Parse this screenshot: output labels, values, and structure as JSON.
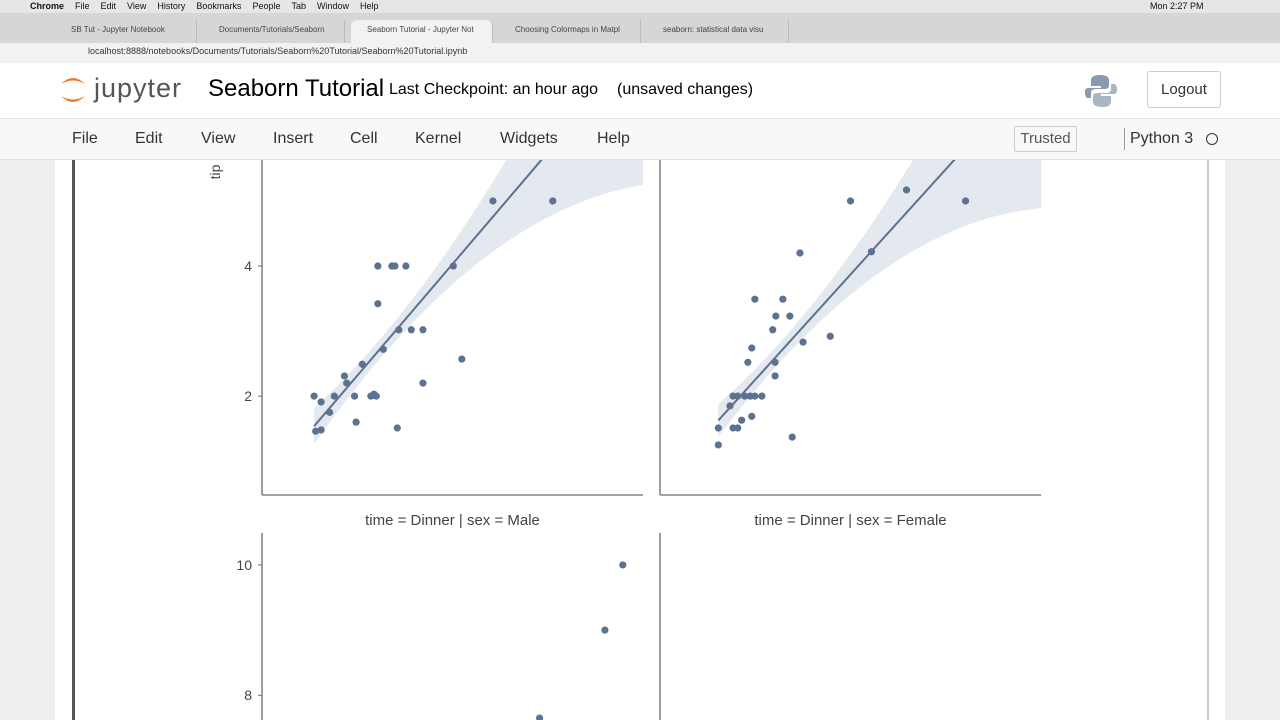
{
  "os_menu": {
    "items": [
      "Chrome",
      "File",
      "Edit",
      "View",
      "History",
      "Bookmarks",
      "People",
      "Tab",
      "Window",
      "Help"
    ],
    "clock": "Mon 2:27 PM"
  },
  "browser": {
    "tabs": [
      "SB Tut - Jupyter Notebook",
      "Documents/Tutorials/Seaborn",
      "Seaborn Tutorial - Jupyter Not",
      "Choosing Colormaps in Matpl",
      "seaborn: statistical data visu"
    ],
    "url": "localhost:8888/notebooks/Documents/Tutorials/Seaborn%20Tutorial/Seaborn%20Tutorial.ipynb"
  },
  "header": {
    "logo": "jupyter",
    "title": "Seaborn Tutorial",
    "checkpoint": "Last Checkpoint: an hour ago",
    "status": "(unsaved changes)",
    "logout": "Logout"
  },
  "menu": {
    "items": [
      "File",
      "Edit",
      "View",
      "Insert",
      "Cell",
      "Kernel",
      "Widgets",
      "Help"
    ],
    "trusted": "Trusted",
    "kernel": "Python 3"
  },
  "chart_data": [
    {
      "type": "scatter",
      "ylabel": "tip",
      "color": "#5d7190",
      "xlim": [
        3,
        52
      ],
      "ylim": [
        0.48,
        5.63
      ],
      "yticks": [
        2,
        4
      ],
      "x": [
        9.7,
        10.6,
        9.9,
        10.6,
        11.7,
        12.3,
        13.6,
        13.9,
        14.9,
        15.1,
        15.9,
        17.0,
        17.4,
        17.7,
        17.9,
        19.7,
        20.1,
        21.5,
        17.9,
        18.6,
        20.4,
        20.6,
        22.2,
        23.7,
        23.7,
        27.6,
        28.7,
        32.7,
        40.4
      ],
      "values": [
        2,
        1.91,
        1.46,
        1.48,
        1.75,
        2,
        2.31,
        2.2,
        2,
        1.6,
        2.49,
        2,
        2.03,
        2,
        4,
        4,
        4,
        4,
        3.42,
        2.72,
        1.51,
        3.02,
        3.02,
        3.02,
        2.2,
        4,
        2.57,
        5,
        5
      ],
      "fit": {
        "slope": 0.14,
        "intercept": 0.18
      }
    },
    {
      "type": "scatter",
      "color": "#5d7190",
      "xlim": [
        3,
        52
      ],
      "ylim": [
        0.48,
        5.63
      ],
      "x": [
        10.5,
        10.5,
        12.4,
        13.0,
        13.5,
        14.8,
        12.4,
        13.0,
        13.9,
        14.6,
        15.2,
        16.1,
        12.0,
        14.3,
        14.8,
        15.2,
        17.8,
        17.8,
        17.5,
        17.9,
        18.8,
        19.7,
        20.0,
        21.0,
        21.4,
        24.9,
        27.5,
        30.2,
        34.7,
        42.3
      ],
      "values": [
        1.25,
        1.51,
        1.51,
        1.51,
        1.63,
        1.69,
        2,
        2,
        2,
        2,
        2,
        2,
        1.85,
        2.52,
        2.74,
        3.49,
        2.52,
        2.31,
        3.02,
        3.23,
        3.49,
        3.23,
        1.37,
        4.2,
        2.83,
        2.92,
        5,
        4.22,
        5.17,
        5
      ],
      "fit": {
        "slope": 0.132,
        "intercept": 0.24
      }
    },
    {
      "type": "scatter",
      "title": "time = Dinner | sex = Male",
      "color": "#5d7190",
      "xlim": [
        3,
        52
      ],
      "ylim": [
        7.62,
        10.49
      ],
      "yticks": [
        8,
        10
      ],
      "x": [
        49.4,
        47.1,
        38.7
      ],
      "values": [
        10,
        9,
        7.65
      ]
    },
    {
      "type": "scatter",
      "title": "time = Dinner | sex = Female",
      "color": "#5d7190",
      "xlim": [
        3,
        52
      ],
      "ylim": [
        7.62,
        10.49
      ],
      "x": [],
      "values": []
    }
  ]
}
